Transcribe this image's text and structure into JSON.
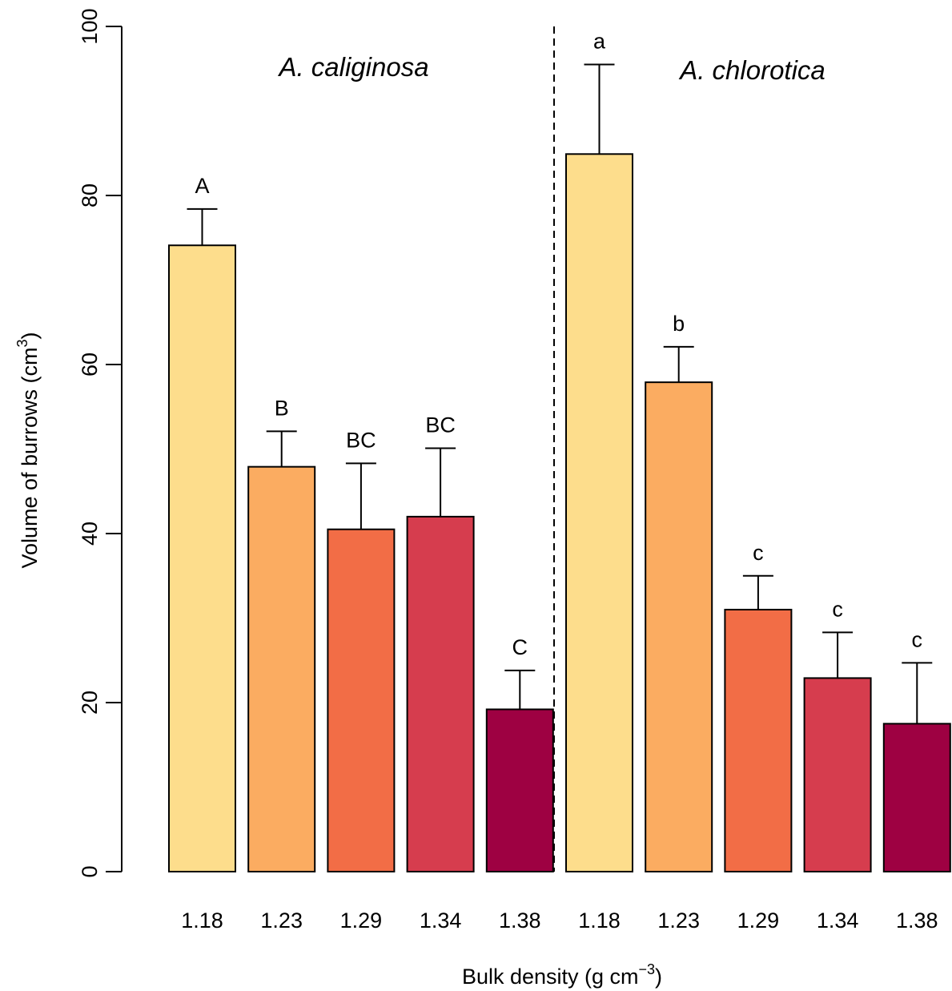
{
  "chart_data": {
    "type": "bar",
    "ylabel": "Volume of burrows (cm",
    "ylabel_sup": "3",
    "ylabel_end": ")",
    "xlabel": "Bulk density (g cm",
    "xlabel_sup": "−3",
    "xlabel_end": ")",
    "ylim": [
      0,
      100
    ],
    "yticks": [
      0,
      20,
      40,
      60,
      80,
      100
    ],
    "groups": [
      {
        "name": "A. caliginosa",
        "categories": [
          "1.18",
          "1.23",
          "1.29",
          "1.34",
          "1.38"
        ],
        "values": [
          74.1,
          47.9,
          40.5,
          42.0,
          19.2
        ],
        "errors": [
          4.3,
          4.2,
          7.8,
          8.1,
          4.6
        ],
        "letters": [
          "A",
          "B",
          "BC",
          "BC",
          "C"
        ]
      },
      {
        "name": "A. chlorotica",
        "categories": [
          "1.18",
          "1.23",
          "1.29",
          "1.34",
          "1.38"
        ],
        "values": [
          84.9,
          57.9,
          31.0,
          22.9,
          17.5
        ],
        "errors": [
          10.6,
          4.2,
          4.0,
          5.4,
          7.2
        ],
        "letters": [
          "a",
          "b",
          "c",
          "c",
          "c"
        ]
      }
    ],
    "colors": [
      "#fddd8c",
      "#fbac61",
      "#f26d46",
      "#d63d4e",
      "#9e0142"
    ],
    "grid": false,
    "legend": "none"
  }
}
